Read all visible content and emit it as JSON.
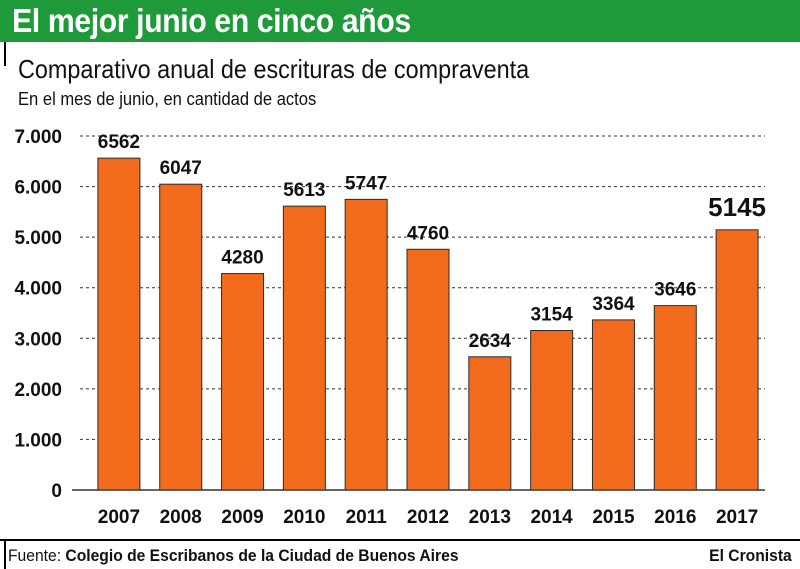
{
  "header": {
    "title": "El mejor junio en cinco años",
    "subtitle": "Comparativo anual de escrituras de compraventa",
    "note": "En el mes de junio, en cantidad de actos"
  },
  "footer": {
    "source_label": "Fuente:",
    "source": "Colegio de Escribanos de la Ciudad de Buenos Aires",
    "brand": "El Cronista"
  },
  "colors": {
    "banner": "#1f9a3a",
    "bar": "#f26b1d",
    "bar_outline": "#2a2a2a",
    "grid": "#333333",
    "text": "#111111"
  },
  "chart_data": {
    "type": "bar",
    "title": "Comparativo anual de escrituras de compraventa",
    "xlabel": "",
    "ylabel": "En el mes de junio, en cantidad de actos",
    "ylim": [
      0,
      7000
    ],
    "yticks": [
      0,
      1000,
      2000,
      3000,
      4000,
      5000,
      6000,
      7000
    ],
    "ytick_labels": [
      "0",
      "1.000",
      "2.000",
      "3.000",
      "4.000",
      "5.000",
      "6.000",
      "7.000"
    ],
    "grid": true,
    "categories": [
      "2007",
      "2008",
      "2009",
      "2010",
      "2011",
      "2012",
      "2013",
      "2014",
      "2015",
      "2016",
      "2017"
    ],
    "values": [
      6562,
      6047,
      4280,
      5613,
      5747,
      4760,
      2634,
      3154,
      3364,
      3646,
      5145
    ],
    "value_labels": [
      "6562",
      "6047",
      "4280",
      "5613",
      "5747",
      "4760",
      "2634",
      "3154",
      "3364",
      "3646",
      "5145"
    ],
    "highlight_index": 10
  }
}
